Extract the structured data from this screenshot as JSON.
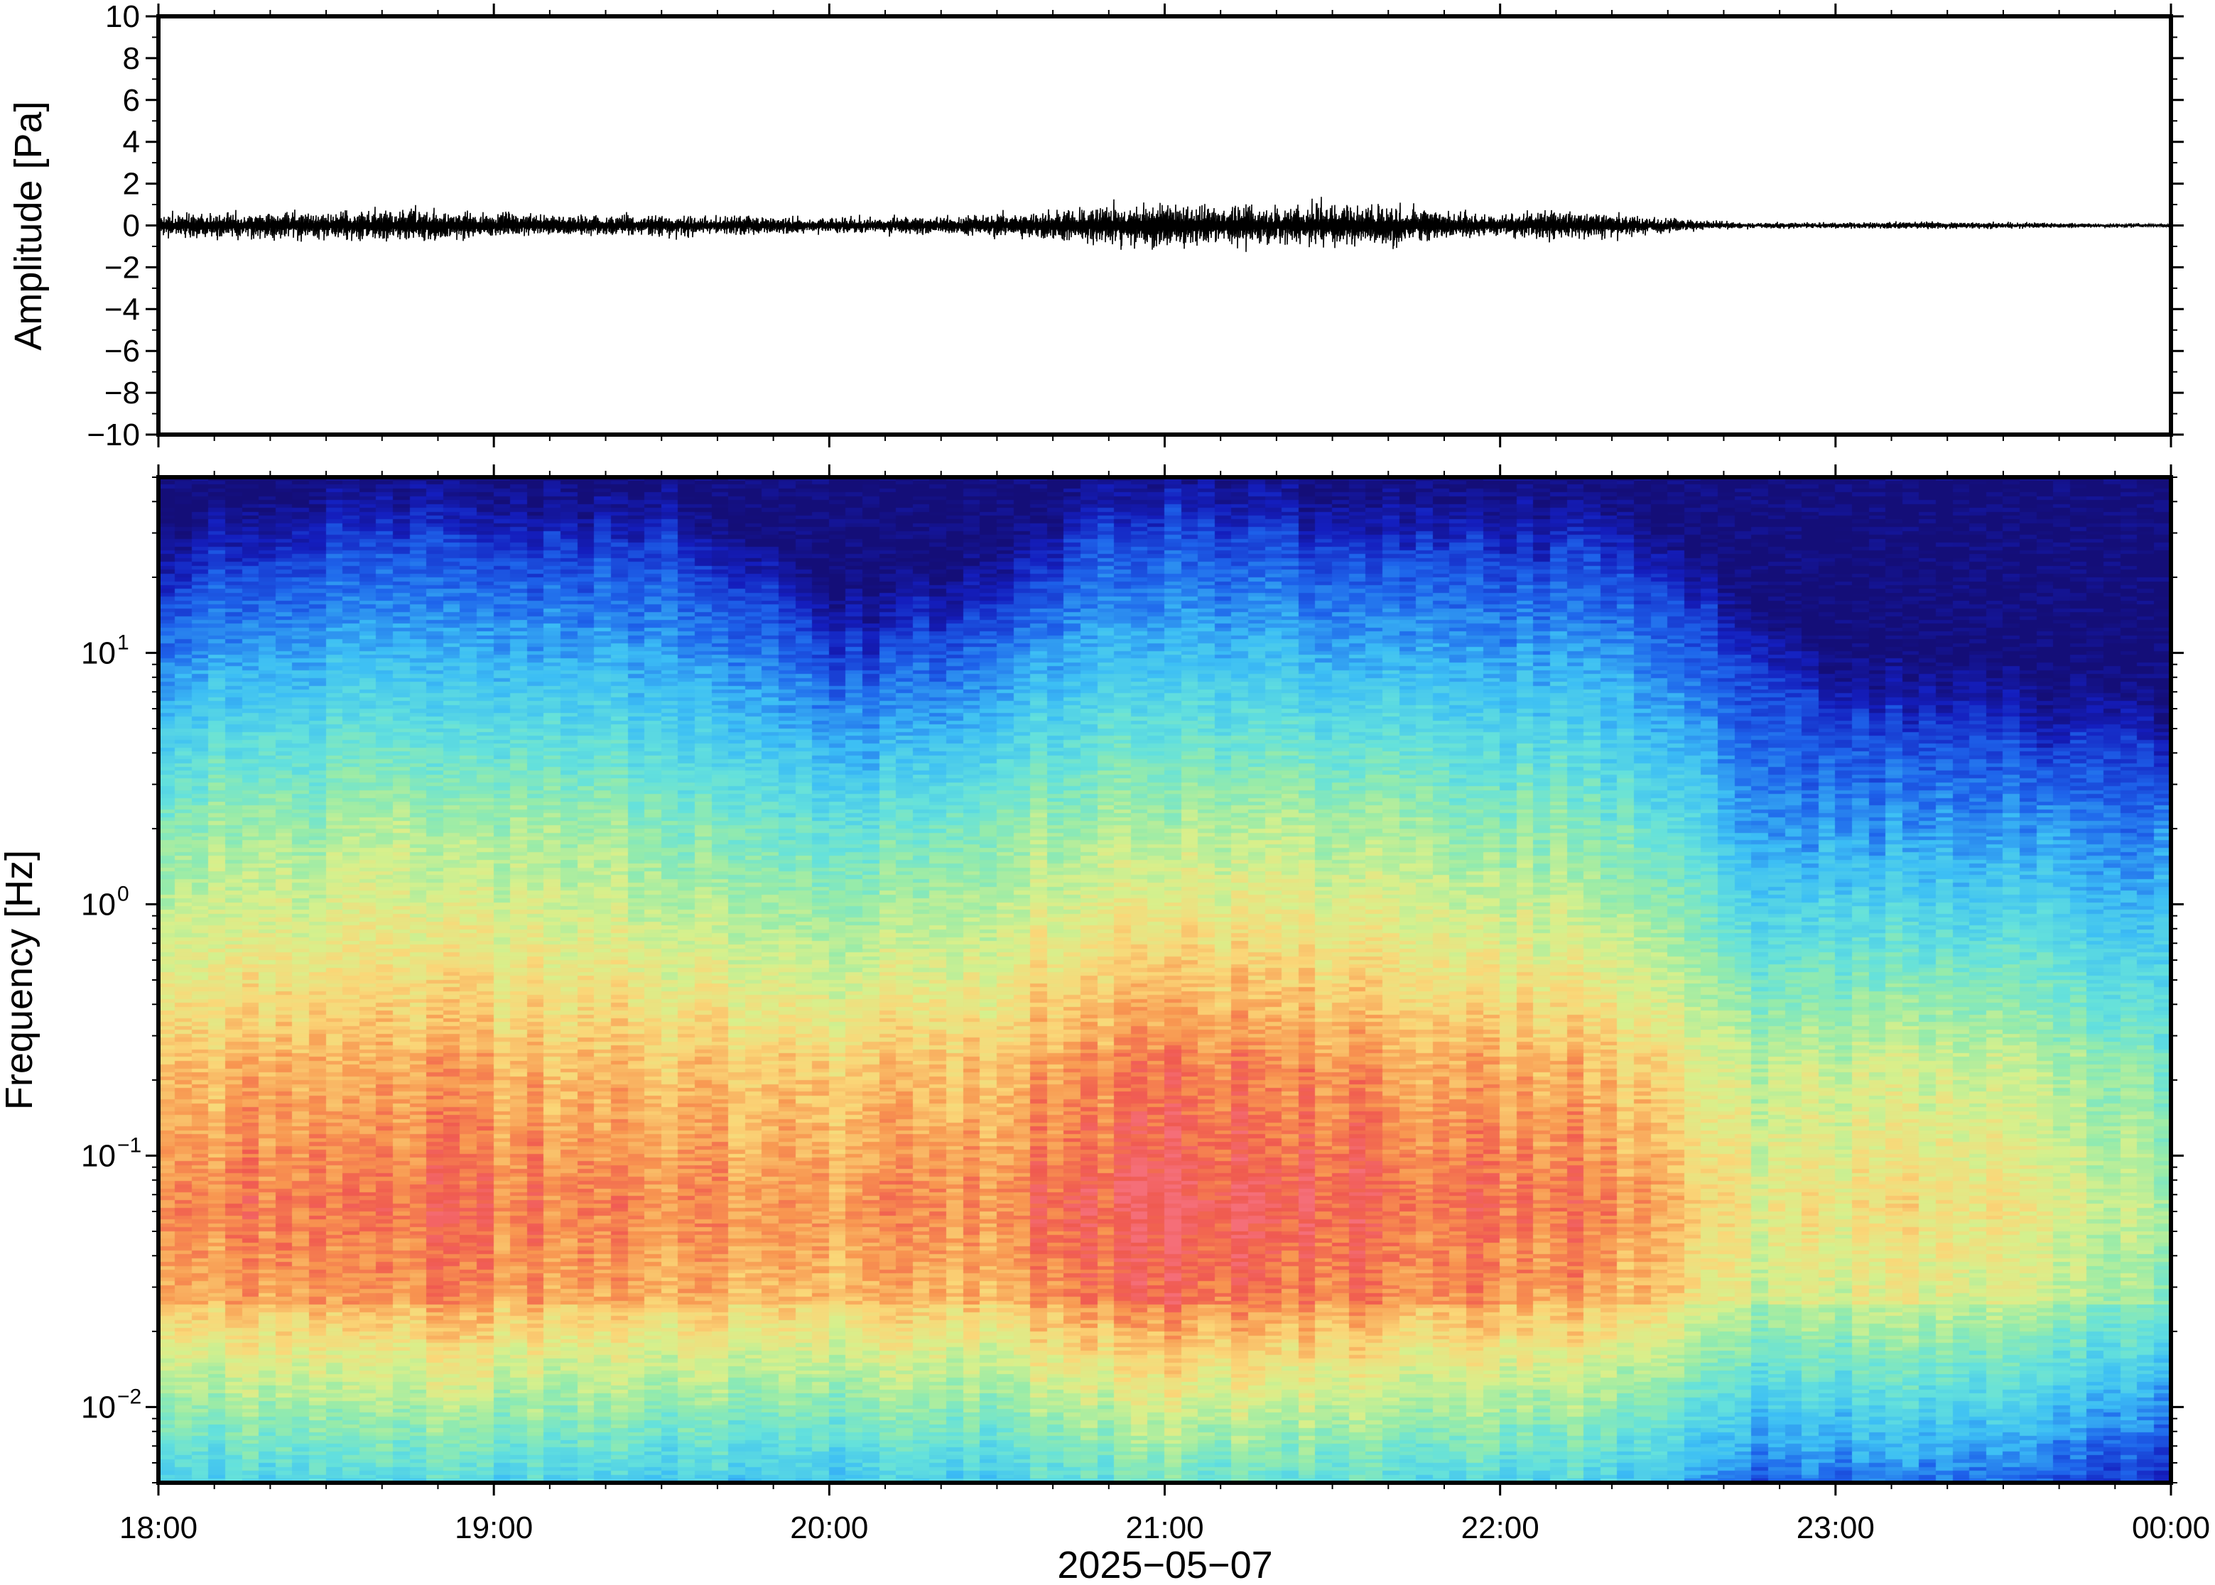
{
  "chart_data": [
    {
      "type": "line",
      "title": "",
      "xlabel": "",
      "ylabel": "Amplitude [Pa]",
      "ylim": [
        -10,
        10
      ],
      "yticks": [
        {
          "value": 10,
          "label": "10"
        },
        {
          "value": 8,
          "label": "8"
        },
        {
          "value": 6,
          "label": "6"
        },
        {
          "value": 4,
          "label": "4"
        },
        {
          "value": 2,
          "label": "2"
        },
        {
          "value": 0,
          "label": "0"
        },
        {
          "value": -2,
          "label": "−2"
        },
        {
          "value": -4,
          "label": "−4"
        },
        {
          "value": -6,
          "label": "−6"
        },
        {
          "value": -8,
          "label": "−8"
        },
        {
          "value": -10,
          "label": "−10"
        }
      ],
      "grid": false,
      "series": [
        {
          "color": "#000000",
          "envelope_time": [
            "18:00",
            "18:30",
            "18:45",
            "19:00",
            "19:30",
            "20:00",
            "20:15",
            "20:30",
            "20:45",
            "20:55",
            "21:05",
            "21:20",
            "21:30",
            "21:45",
            "22:00",
            "22:15",
            "22:30",
            "22:45",
            "23:00",
            "23:20",
            "23:30",
            "00:00"
          ],
          "envelope_amplitude": [
            0.6,
            0.7,
            0.9,
            0.6,
            0.55,
            0.4,
            0.45,
            0.6,
            0.9,
            1.2,
            1.1,
            0.9,
            1.1,
            0.9,
            0.6,
            0.8,
            0.35,
            0.15,
            0.15,
            0.2,
            0.15,
            0.1
          ]
        }
      ]
    },
    {
      "type": "heatmap",
      "title": "",
      "xlabel": "2025−05−07",
      "ylabel": "Frequency [Hz]",
      "yscale": "log",
      "ylim": [
        0.005,
        50
      ],
      "colormap": "jet-like (low = dark blue, high = red)",
      "yticks": [
        {
          "value": 0.01,
          "base": "10",
          "exp": "−2"
        },
        {
          "value": 0.1,
          "base": "10",
          "exp": "−1"
        },
        {
          "value": 1,
          "base": "10",
          "exp": "0"
        },
        {
          "value": 10,
          "base": "10",
          "exp": "1"
        }
      ],
      "xticks": [
        "18:00",
        "19:00",
        "20:00",
        "21:00",
        "22:00",
        "23:00",
        "00:00"
      ],
      "time_range": [
        "18:00",
        "00:00"
      ],
      "profile_time": [
        "18:00",
        "18:40",
        "19:00",
        "19:30",
        "19:50",
        "20:00",
        "20:30",
        "20:50",
        "21:00",
        "21:20",
        "21:40",
        "22:00",
        "22:15",
        "22:30",
        "22:45",
        "23:00",
        "23:30",
        "00:00"
      ],
      "cutoff_frequency_hz": [
        20,
        33,
        25,
        30,
        16,
        10,
        15,
        32,
        36,
        30,
        28,
        25,
        28,
        18,
        9,
        6,
        5,
        4
      ],
      "mid_band_level": [
        0.55,
        0.6,
        0.58,
        0.55,
        0.5,
        0.45,
        0.55,
        0.62,
        0.62,
        0.6,
        0.58,
        0.55,
        0.55,
        0.45,
        0.3,
        0.28,
        0.3,
        0.25
      ],
      "low_band_peak_level": [
        0.88,
        0.93,
        0.9,
        0.88,
        0.85,
        0.85,
        0.88,
        0.95,
        0.98,
        0.96,
        0.94,
        0.9,
        0.9,
        0.82,
        0.7,
        0.72,
        0.72,
        0.6
      ]
    }
  ]
}
